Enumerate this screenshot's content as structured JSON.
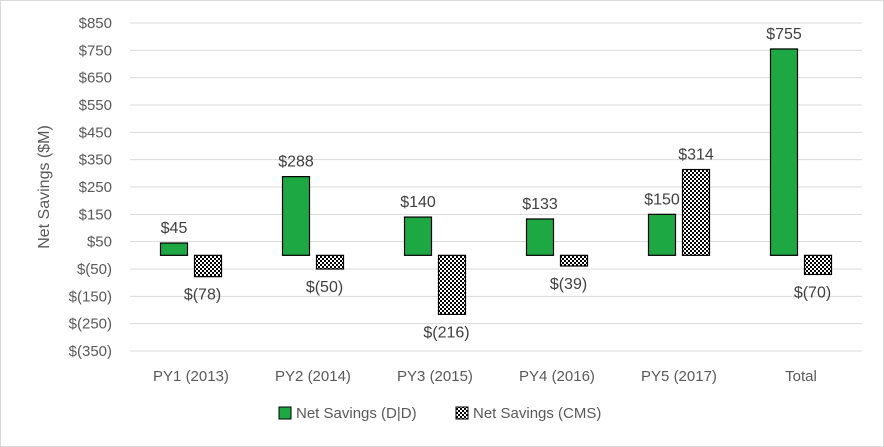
{
  "chart_data": {
    "type": "bar",
    "title": "",
    "xlabel": "",
    "ylabel": "Net Savings ($M)",
    "categories": [
      "PY1 (2013)",
      "PY2 (2014)",
      "PY3 (2015)",
      "PY4 (2016)",
      "PY5 (2017)",
      "Total"
    ],
    "series": [
      {
        "name": "Net Savings (D|D)",
        "color": "#1ea843",
        "pattern": "solid",
        "values": [
          45,
          288,
          140,
          133,
          150,
          755
        ],
        "labels": [
          "$45",
          "$288",
          "$140",
          "$133",
          "$150",
          "$755"
        ]
      },
      {
        "name": "Net Savings (CMS)",
        "color": "#000000",
        "pattern": "checker",
        "values": [
          -78,
          -50,
          -216,
          -39,
          314,
          -70
        ],
        "labels": [
          "$(78)",
          "$(50)",
          "$(216)",
          "$(39)",
          "$314",
          "$(70)"
        ]
      }
    ],
    "ylim": [
      -350,
      850
    ],
    "yticks": [
      850,
      750,
      650,
      550,
      450,
      350,
      250,
      150,
      50,
      -50,
      -150,
      -250,
      -350
    ],
    "ytick_labels": [
      "$850",
      "$750",
      "$650",
      "$550",
      "$450",
      "$350",
      "$250",
      "$150",
      "$50",
      "$(50)",
      "$(150)",
      "$(250)",
      "$(350)"
    ],
    "grid": true,
    "legend": "bottom"
  }
}
